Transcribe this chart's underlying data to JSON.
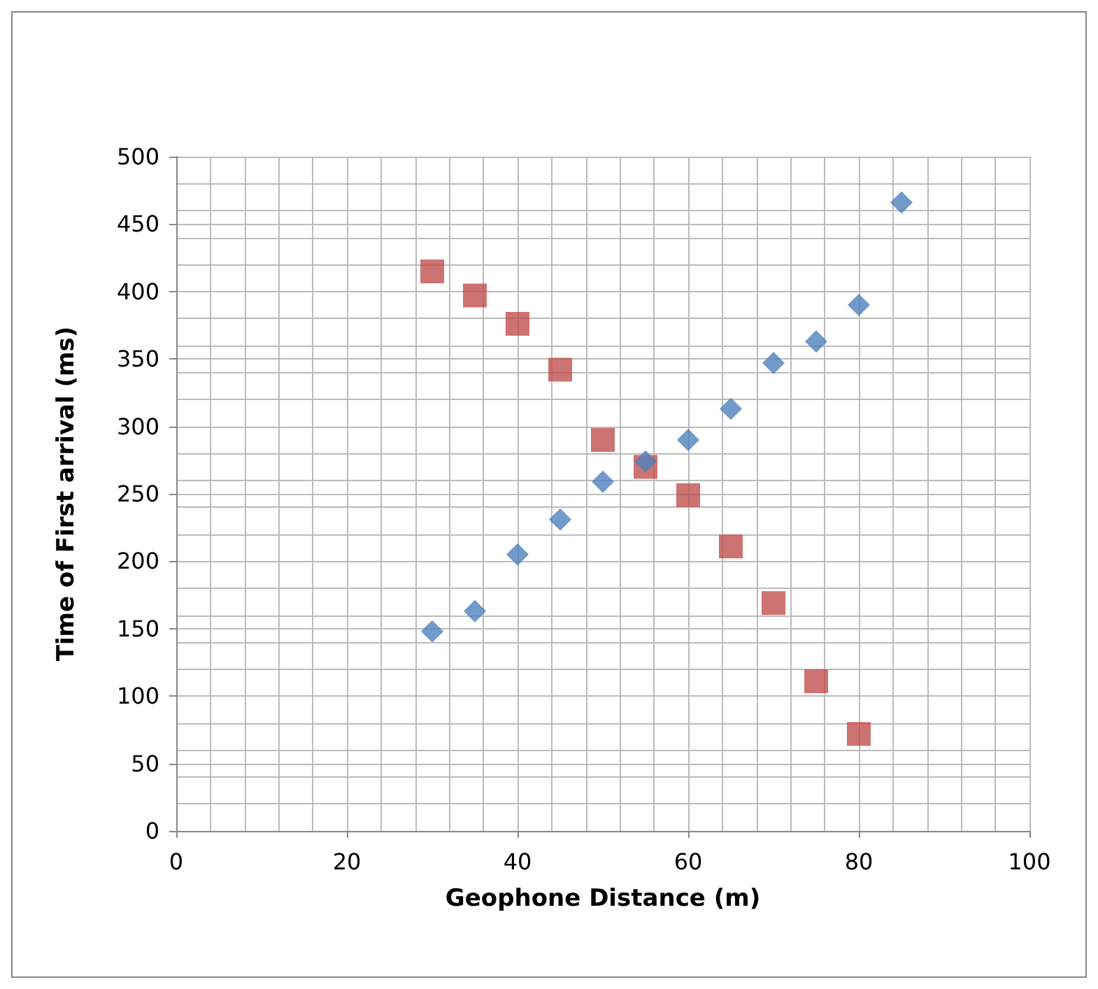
{
  "chart_data": {
    "type": "scatter",
    "xlabel": "Geophone Distance (m)",
    "ylabel": "Time of First arrival (ms)",
    "xlim": [
      0,
      100
    ],
    "xticks": [
      0,
      20,
      40,
      60,
      80,
      100
    ],
    "ylim": [
      0,
      500
    ],
    "yticks": [
      0,
      50,
      100,
      150,
      200,
      250,
      300,
      350,
      400,
      450,
      500
    ],
    "grid": true,
    "series": [
      {
        "color": "#4f81bd",
        "marker": "diamond",
        "x": [
          30,
          35,
          40,
          45,
          50,
          55,
          60,
          65,
          70,
          75,
          80,
          85
        ],
        "values": [
          148,
          163,
          205,
          231,
          259,
          274,
          290,
          313,
          347,
          363,
          390,
          466
        ]
      },
      {
        "color": "#c0504d",
        "marker": "square",
        "x": [
          30,
          35,
          40,
          45,
          50,
          55,
          60,
          65,
          70,
          75,
          80
        ],
        "values": [
          415,
          397,
          376,
          342,
          290,
          270,
          249,
          211,
          169,
          111,
          72
        ]
      }
    ]
  }
}
